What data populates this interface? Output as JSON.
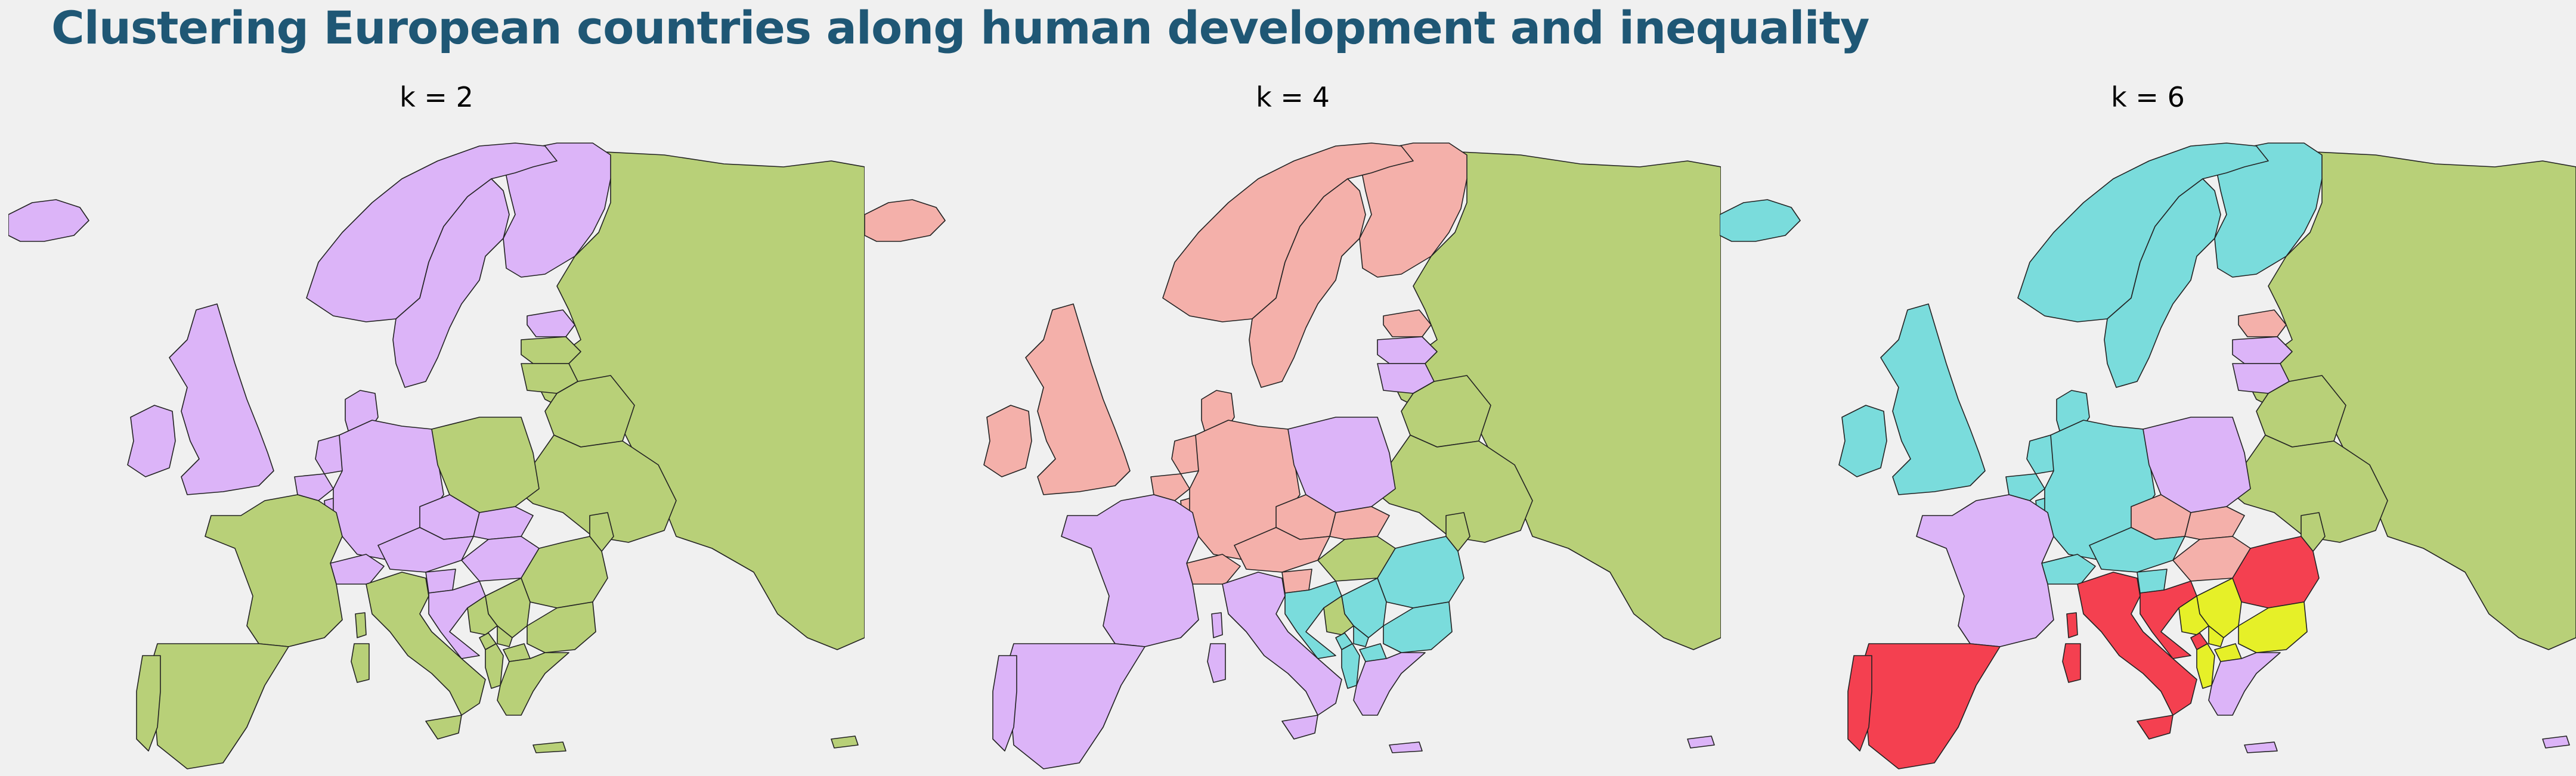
{
  "title": "Clustering European countries along human development and inequality",
  "colors": {
    "background": "#f0f0f0",
    "title": "#1f5775",
    "c_green": "#b8d078",
    "c_purple": "#dcb4f8",
    "c_pink": "#f4b0aa",
    "c_cyan": "#7adcdc",
    "c_red": "#f44050",
    "c_yellow": "#e6f028"
  },
  "panels": [
    {
      "label": "k = 2",
      "assignments": {
        "iceland": "c_purple",
        "uk": "c_purple",
        "ireland": "c_purple",
        "norway": "c_purple",
        "sweden": "c_purple",
        "finland": "c_purple",
        "denmark": "c_purple",
        "estonia": "c_purple",
        "latvia": "c_green",
        "lithuania": "c_green",
        "belarus": "c_green",
        "russia": "c_green",
        "ukraine": "c_green",
        "moldova": "c_green",
        "netherlands": "c_purple",
        "belgium": "c_purple",
        "luxembourg": "c_purple",
        "germany": "c_purple",
        "poland": "c_green",
        "czechia": "c_purple",
        "slovakia": "c_purple",
        "austria": "c_purple",
        "switzerland": "c_purple",
        "hungary": "c_purple",
        "slovenia": "c_purple",
        "croatia": "c_purple",
        "france": "c_green",
        "spain": "c_green",
        "portugal": "c_green",
        "italy": "c_green",
        "sicily": "c_green",
        "sardinia": "c_green",
        "corsica": "c_green",
        "romania": "c_green",
        "bulgaria": "c_green",
        "bosnia": "c_green",
        "serbia": "c_green",
        "montenegro": "c_green",
        "kosovo": "c_green",
        "albania": "c_green",
        "north_macedonia": "c_green",
        "greece": "c_green",
        "crete": "c_green",
        "cyprus": "c_green"
      }
    },
    {
      "label": "k = 4",
      "assignments": {
        "iceland": "c_pink",
        "uk": "c_pink",
        "ireland": "c_pink",
        "norway": "c_pink",
        "sweden": "c_pink",
        "finland": "c_pink",
        "denmark": "c_pink",
        "estonia": "c_pink",
        "latvia": "c_purple",
        "lithuania": "c_purple",
        "belarus": "c_green",
        "russia": "c_green",
        "ukraine": "c_green",
        "moldova": "c_green",
        "netherlands": "c_pink",
        "belgium": "c_pink",
        "luxembourg": "c_pink",
        "germany": "c_pink",
        "poland": "c_purple",
        "czechia": "c_pink",
        "slovakia": "c_pink",
        "austria": "c_pink",
        "switzerland": "c_pink",
        "hungary": "c_green",
        "slovenia": "c_pink",
        "croatia": "c_cyan",
        "france": "c_purple",
        "spain": "c_purple",
        "portugal": "c_purple",
        "italy": "c_purple",
        "sicily": "c_purple",
        "sardinia": "c_purple",
        "corsica": "c_purple",
        "romania": "c_cyan",
        "bulgaria": "c_cyan",
        "bosnia": "c_green",
        "serbia": "c_cyan",
        "montenegro": "c_cyan",
        "kosovo": "c_cyan",
        "albania": "c_cyan",
        "north_macedonia": "c_cyan",
        "greece": "c_purple",
        "crete": "c_purple",
        "cyprus": "c_purple"
      }
    },
    {
      "label": "k = 6",
      "assignments": {
        "iceland": "c_cyan",
        "uk": "c_cyan",
        "ireland": "c_cyan",
        "norway": "c_cyan",
        "sweden": "c_cyan",
        "finland": "c_cyan",
        "denmark": "c_cyan",
        "estonia": "c_pink",
        "latvia": "c_purple",
        "lithuania": "c_purple",
        "belarus": "c_green",
        "russia": "c_green",
        "ukraine": "c_green",
        "moldova": "c_green",
        "netherlands": "c_cyan",
        "belgium": "c_cyan",
        "luxembourg": "c_cyan",
        "germany": "c_cyan",
        "poland": "c_purple",
        "czechia": "c_pink",
        "slovakia": "c_pink",
        "austria": "c_cyan",
        "switzerland": "c_cyan",
        "hungary": "c_pink",
        "slovenia": "c_cyan",
        "croatia": "c_red",
        "france": "c_purple",
        "spain": "c_red",
        "portugal": "c_red",
        "italy": "c_red",
        "sicily": "c_red",
        "sardinia": "c_red",
        "corsica": "c_red",
        "romania": "c_red",
        "bulgaria": "c_yellow",
        "bosnia": "c_yellow",
        "serbia": "c_yellow",
        "montenegro": "c_red",
        "kosovo": "c_yellow",
        "albania": "c_yellow",
        "north_macedonia": "c_yellow",
        "greece": "c_purple",
        "crete": "c_purple",
        "cyprus": "c_purple"
      }
    }
  ]
}
